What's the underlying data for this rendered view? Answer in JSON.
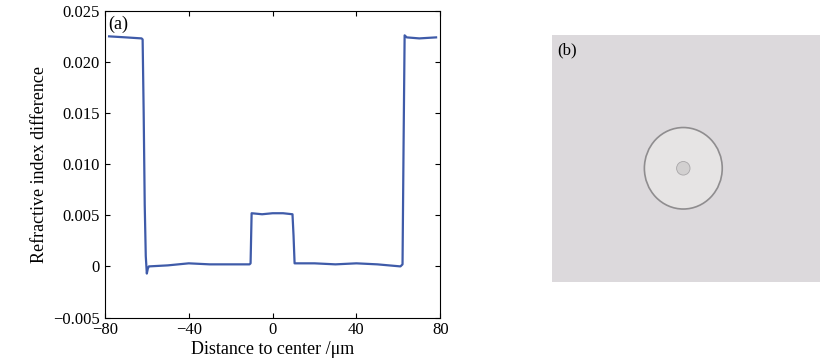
{
  "chart_data": {
    "type": "line",
    "panel_label": "(a)",
    "x_label": "Distance to center /μm",
    "y_label": "Refractive index difference",
    "x": [
      -78,
      -70,
      -62.5,
      -62,
      -61.5,
      -61,
      -60.5,
      -60,
      -59.5,
      -59,
      -50,
      -40,
      -30,
      -20,
      -11,
      -10.5,
      -10,
      -5,
      0,
      5,
      9.5,
      10,
      10.5,
      20,
      30,
      40,
      50,
      61,
      62,
      62.5,
      63,
      64,
      70,
      78
    ],
    "series": [
      {
        "name": "Refractive index difference",
        "color": "#3f5ba9",
        "line_style": "solid",
        "values": [
          0.0225,
          0.0224,
          0.0223,
          0.0222,
          0.015,
          0.006,
          0.001,
          -0.0007,
          -0.0002,
          0.0,
          0.0001,
          0.0003,
          0.0002,
          0.0002,
          0.0002,
          0.0003,
          0.0052,
          0.0051,
          0.0052,
          0.0052,
          0.0051,
          0.003,
          0.0003,
          0.0003,
          0.0002,
          0.0003,
          0.0002,
          0.0,
          0.0002,
          0.012,
          0.0226,
          0.0224,
          0.0223,
          0.0224
        ]
      }
    ],
    "xlim": [
      -80,
      80
    ],
    "xticks": [
      {
        "value": -80,
        "label": "−80"
      },
      {
        "value": -40,
        "label": "−40"
      },
      0,
      40,
      80
    ],
    "ylim": [
      -0.005,
      0.025
    ],
    "yticks": [
      {
        "value": -0.005,
        "label": "−0.005"
      },
      0,
      0.005,
      {
        "value": 0.01,
        "label": "0.010"
      },
      0.015,
      {
        "value": 0.02,
        "label": "0.020"
      },
      0.025
    ],
    "grid": false
  },
  "photo": {
    "label": "(b)"
  }
}
